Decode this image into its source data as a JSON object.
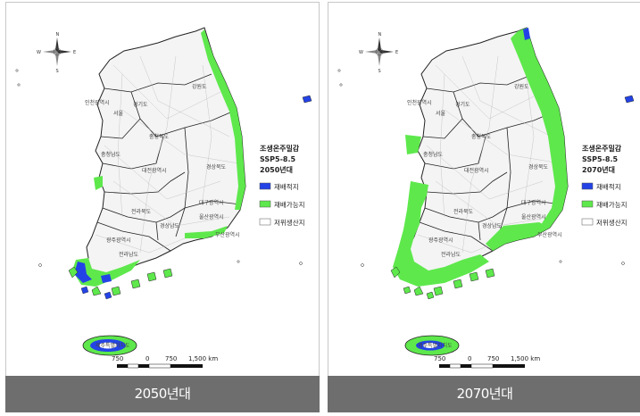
{
  "panels": [
    {
      "caption": "2050년대",
      "legend": {
        "title_line1": "조생온주밀감",
        "title_line2": "SSP5-8.5",
        "title_line3": "2050년대",
        "items": [
          {
            "label": "재배적지",
            "color": "#2443e6"
          },
          {
            "label": "재배가능지",
            "color": "#5ee84c"
          },
          {
            "label": "저위생산지",
            "color": "#ffffff"
          }
        ]
      }
    },
    {
      "caption": "2070년대",
      "legend": {
        "title_line1": "조생온주밀감",
        "title_line2": "SSP5-8.5",
        "title_line3": "2070년대",
        "items": [
          {
            "label": "재배적지",
            "color": "#2443e6"
          },
          {
            "label": "재배가능지",
            "color": "#5ee84c"
          },
          {
            "label": "저위생산지",
            "color": "#ffffff"
          }
        ]
      }
    }
  ],
  "regions": {
    "gangwon": "강원도",
    "gyeonggi": "경기도",
    "incheon": "인천광역시",
    "seoul": "서울",
    "chungbuk": "충청북도",
    "chungnam": "충청남도",
    "daejeon": "대전광역시",
    "gyeongbuk": "경상북도",
    "jeonbuk": "전라북도",
    "daegu": "대구광역시",
    "ulsan": "울산광역시",
    "gyeongnam": "경상남도",
    "busan": "부산광역시",
    "gwangju": "광주광역시",
    "jeonnam": "전라남도",
    "jeju": "제주특별자치도"
  },
  "compass": {
    "n": "N",
    "s": "S",
    "e": "E",
    "w": "W"
  },
  "scale": {
    "labels": [
      "750",
      "0",
      "750",
      "1,500 km"
    ]
  }
}
